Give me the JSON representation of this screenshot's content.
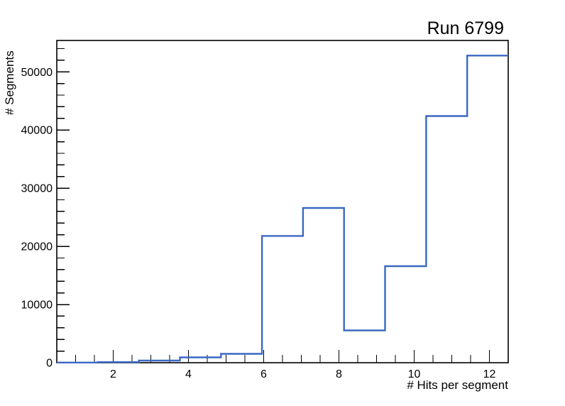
{
  "chart_data": {
    "type": "step-histogram",
    "title": "Run 6799",
    "xlabel": "# Hits per segment",
    "ylabel": "# Segments",
    "xlim": [
      0.5,
      12.5
    ],
    "ylim": [
      0,
      55400
    ],
    "grid": false,
    "legend": null,
    "x_major_ticks": [
      2,
      4,
      6,
      8,
      10,
      12
    ],
    "x_tick_labels": [
      "2",
      "4",
      "6",
      "8",
      "10",
      "12"
    ],
    "x_minor_step": 0.5,
    "y_major_ticks": [
      0,
      10000,
      20000,
      30000,
      40000,
      50000
    ],
    "y_tick_labels": [
      "0",
      "10000",
      "20000",
      "30000",
      "40000",
      "50000"
    ],
    "y_minor_step": 2000,
    "bin_edges": [
      0.5,
      1.5909,
      2.6818,
      3.7727,
      4.8636,
      5.9545,
      7.0455,
      8.1364,
      9.2273,
      10.3182,
      11.4091,
      12.5
    ],
    "counts": [
      30,
      100,
      370,
      910,
      1520,
      21800,
      26600,
      5550,
      16600,
      42400,
      52800
    ],
    "line_color": "#3a68c4",
    "frame_color": "#000000",
    "background_color": "#ffffff"
  }
}
